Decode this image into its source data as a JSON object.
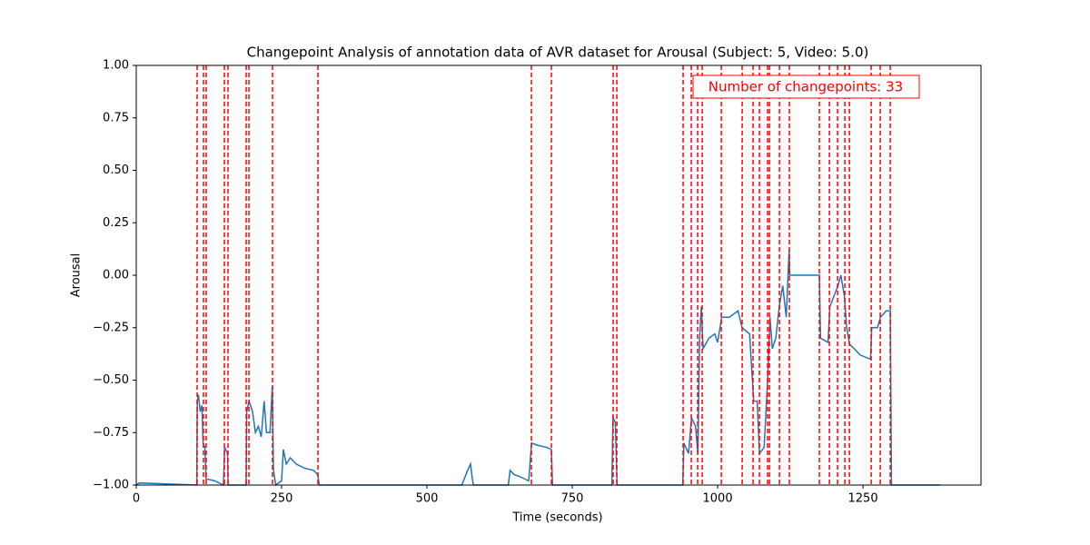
{
  "chart_data": {
    "type": "line",
    "title": "Changepoint Analysis of annotation data of AVR dataset for Arousal (Subject: 5, Video: 5.0)",
    "x_label": "Time (seconds)",
    "y_label": "Arousal",
    "annotation": "Number of changepoints: 33",
    "x": [
      0,
      5,
      104,
      105,
      107,
      110,
      113,
      115,
      118,
      120,
      135,
      150,
      152,
      157,
      158,
      189,
      190,
      194,
      200,
      205,
      210,
      215,
      220,
      224,
      230,
      234,
      236,
      240,
      250,
      253,
      258,
      265,
      275,
      290,
      305,
      312,
      315,
      560,
      570,
      575,
      578,
      580,
      640,
      643,
      650,
      660,
      675,
      680,
      690,
      705,
      714,
      716,
      818,
      820,
      824,
      827,
      940,
      942,
      950,
      955,
      962,
      966,
      969,
      972,
      975,
      985,
      995,
      1000,
      1007,
      1020,
      1035,
      1042,
      1055,
      1062,
      1068,
      1072,
      1080,
      1086,
      1090,
      1094,
      1100,
      1106,
      1112,
      1118,
      1123,
      1124,
      1175,
      1177,
      1190,
      1193,
      1200,
      1207,
      1212,
      1218,
      1222,
      1227,
      1235,
      1245,
      1263,
      1265,
      1275,
      1280,
      1290,
      1297,
      1299,
      1383
    ],
    "series": [
      {
        "color": "#1f77b4",
        "values": [
          -1,
          -0.99,
          -1,
          -0.6,
          -0.57,
          -0.65,
          -0.62,
          -0.8,
          -0.82,
          -0.97,
          -0.98,
          -1,
          -0.82,
          -0.85,
          -1,
          -1,
          -0.65,
          -0.6,
          -0.65,
          -0.75,
          -0.72,
          -0.77,
          -0.6,
          -0.75,
          -0.75,
          -0.53,
          -0.93,
          -1,
          -0.98,
          -0.83,
          -0.9,
          -0.87,
          -0.9,
          -0.92,
          -0.93,
          -0.95,
          -1,
          -1,
          -0.93,
          -0.9,
          -0.97,
          -1,
          -1,
          -0.93,
          -0.95,
          -0.96,
          -0.98,
          -0.8,
          -0.81,
          -0.82,
          -0.83,
          -1,
          -1,
          -0.68,
          -0.7,
          -1,
          -1,
          -0.8,
          -0.85,
          -0.68,
          -0.72,
          -0.85,
          -0.3,
          -0.15,
          -0.35,
          -0.3,
          -0.28,
          -0.32,
          -0.2,
          -0.2,
          -0.17,
          -0.25,
          -0.28,
          -0.6,
          -0.6,
          -0.85,
          -0.82,
          -0.5,
          -0.2,
          -0.35,
          -0.3,
          -0.15,
          -0.05,
          -0.2,
          0.12,
          0,
          0,
          -0.3,
          -0.32,
          -0.15,
          -0.1,
          -0.05,
          0,
          -0.1,
          -0.25,
          -0.33,
          -0.35,
          -0.38,
          -0.4,
          -0.25,
          -0.25,
          -0.2,
          -0.17,
          -0.17,
          -1,
          -1
        ]
      }
    ],
    "changepoints": [
      104.7,
      115.6,
      120.3,
      151.6,
      157.8,
      189.1,
      193.8,
      234.4,
      312.5,
      679.7,
      714.1,
      820.3,
      826.6,
      940.6,
      954.7,
      965.6,
      973.4,
      1006.3,
      1042.2,
      1060.9,
      1071.9,
      1085.9,
      1089.1,
      1106.3,
      1123.4,
      1175,
      1192.2,
      1206.3,
      1218.8,
      1226.6,
      1264.1,
      1279.7,
      1296.9
    ],
    "changepoint_color": "#ff0000",
    "xlim": [
      0,
      1453
    ],
    "ylim": [
      -1,
      1
    ],
    "xticks": [
      0,
      250,
      500,
      750,
      1000,
      1250
    ],
    "yticks": [
      {
        "value": -1,
        "label": "−1.00"
      },
      {
        "value": -0.75,
        "label": "−0.75"
      },
      {
        "value": -0.5,
        "label": "−0.50"
      },
      {
        "value": -0.25,
        "label": "−0.25"
      },
      {
        "value": 0,
        "label": "0.00"
      },
      {
        "value": 0.25,
        "label": "0.25"
      },
      {
        "value": 0.5,
        "label": "0.50"
      },
      {
        "value": 0.75,
        "label": "0.75"
      },
      {
        "value": 1,
        "label": "1.00"
      }
    ]
  }
}
